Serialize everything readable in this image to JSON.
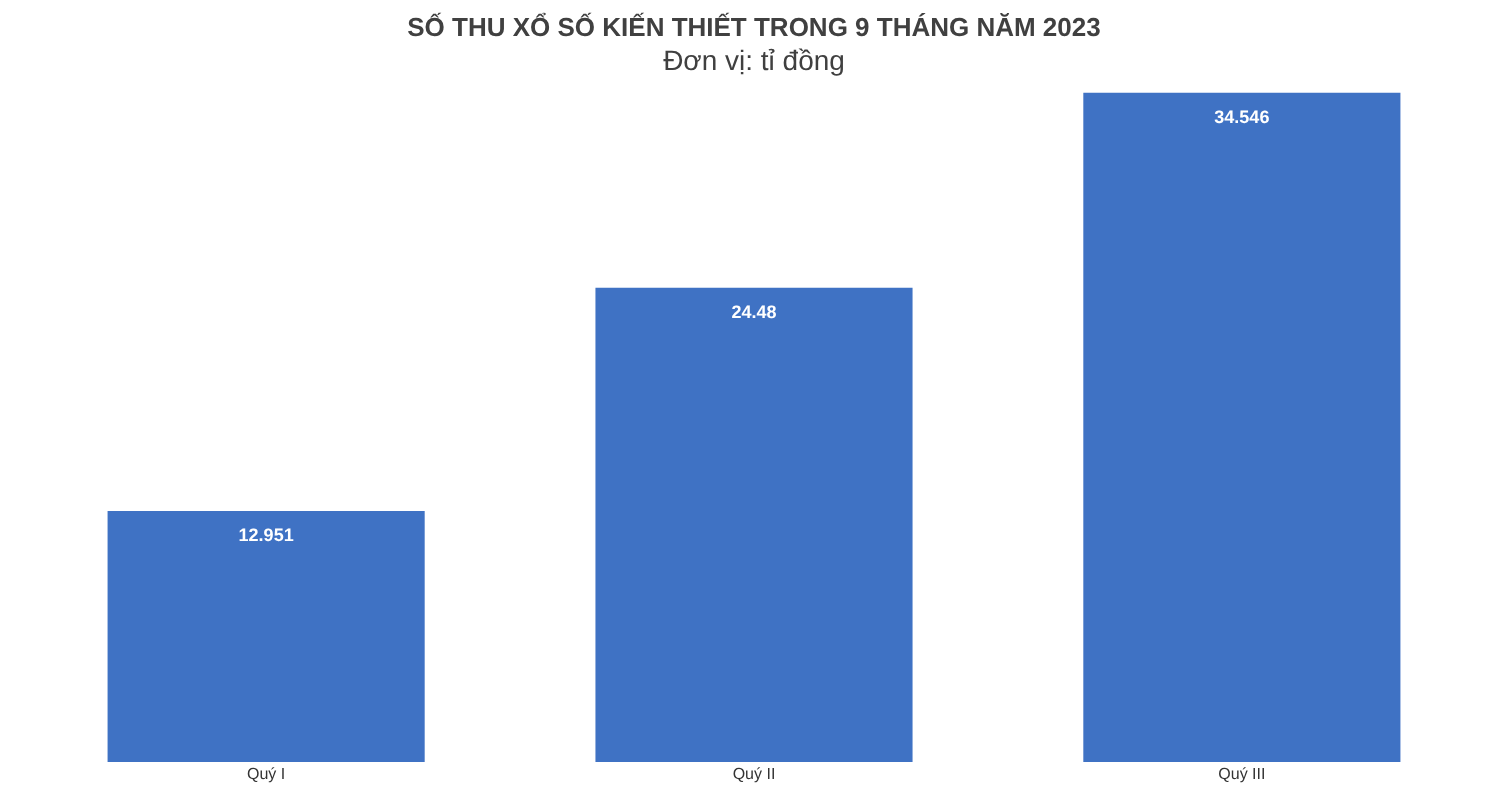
{
  "chart_data": {
    "type": "bar",
    "title": "SỐ THU XỔ SỐ KIẾN THIẾT TRONG 9 THÁNG NĂM 2023",
    "subtitle": "Đơn vị: tỉ đồng",
    "categories": [
      "Quý I",
      "Quý II",
      "Quý III"
    ],
    "values": [
      12.951,
      24.48,
      34.546
    ],
    "color": "#3f72c4",
    "data_labels": true
  }
}
